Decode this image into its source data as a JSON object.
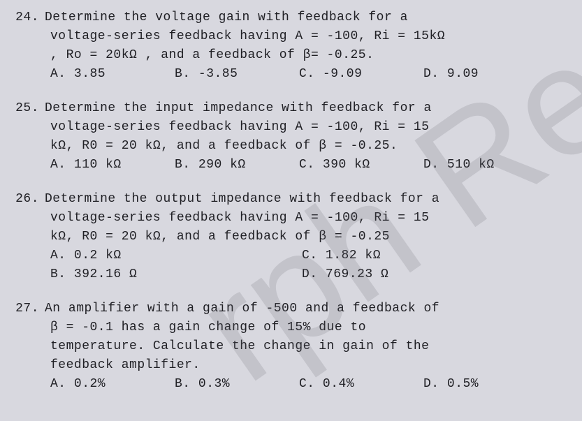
{
  "questions": [
    {
      "num": "24.",
      "lines": [
        "Determine the voltage gain with feedback for a",
        "voltage-series feedback having A = -100, Ri = 15kΩ",
        ", Ro = 20kΩ , and a feedback of  β= -0.25."
      ],
      "options": [
        {
          "label": "A. 3.85",
          "cls": "w4"
        },
        {
          "label": "B. -3.85",
          "cls": "w4"
        },
        {
          "label": "C. -9.09",
          "cls": "w4"
        },
        {
          "label": "D. 9.09",
          "cls": "w4"
        }
      ]
    },
    {
      "num": "25.",
      "lines": [
        "Determine the input impedance with feedback for a",
        "voltage-series feedback having A = -100, Ri = 15",
        "kΩ, R0 = 20 kΩ, and a feedback of β = -0.25."
      ],
      "options": [
        {
          "label": "A. 110 kΩ",
          "cls": "w4"
        },
        {
          "label": "B. 290 kΩ",
          "cls": "w4"
        },
        {
          "label": "C. 390 kΩ",
          "cls": "w4"
        },
        {
          "label": "D. 510 kΩ",
          "cls": "w4"
        }
      ]
    },
    {
      "num": "26.",
      "lines": [
        "Determine the output impedance with feedback for a",
        "voltage-series feedback having A = -100, Ri = 15",
        "kΩ, R0 = 20 kΩ, and a feedback of β = -0.25"
      ],
      "options": [
        {
          "label": "A. 0.2 kΩ",
          "cls": "w2"
        },
        {
          "label": "C. 1.82 kΩ",
          "cls": "w2"
        },
        {
          "label": "B. 392.16 Ω",
          "cls": "w2"
        },
        {
          "label": "D. 769.23 Ω",
          "cls": "w2"
        }
      ]
    },
    {
      "num": "27.",
      "lines": [
        "An amplifier with a gain of -500 and a feedback of",
        "β = -0.1 has a gain change of 15% due to",
        "temperature. Calculate the change in gain of the",
        "feedback amplifier."
      ],
      "options": [
        {
          "label": "A. 0.2%",
          "cls": "w4"
        },
        {
          "label": "B. 0.3%",
          "cls": "w4"
        },
        {
          "label": "C. 0.4%",
          "cls": "w4"
        },
        {
          "label": "D. 0.5%",
          "cls": "w4"
        }
      ]
    }
  ],
  "watermark_text": "rph Re",
  "colors": {
    "background": "#d8d8df",
    "text": "#202025",
    "watermark": "rgba(100,100,110,0.18)"
  },
  "typography": {
    "font_family": "Courier New",
    "font_size_pt": 14
  }
}
